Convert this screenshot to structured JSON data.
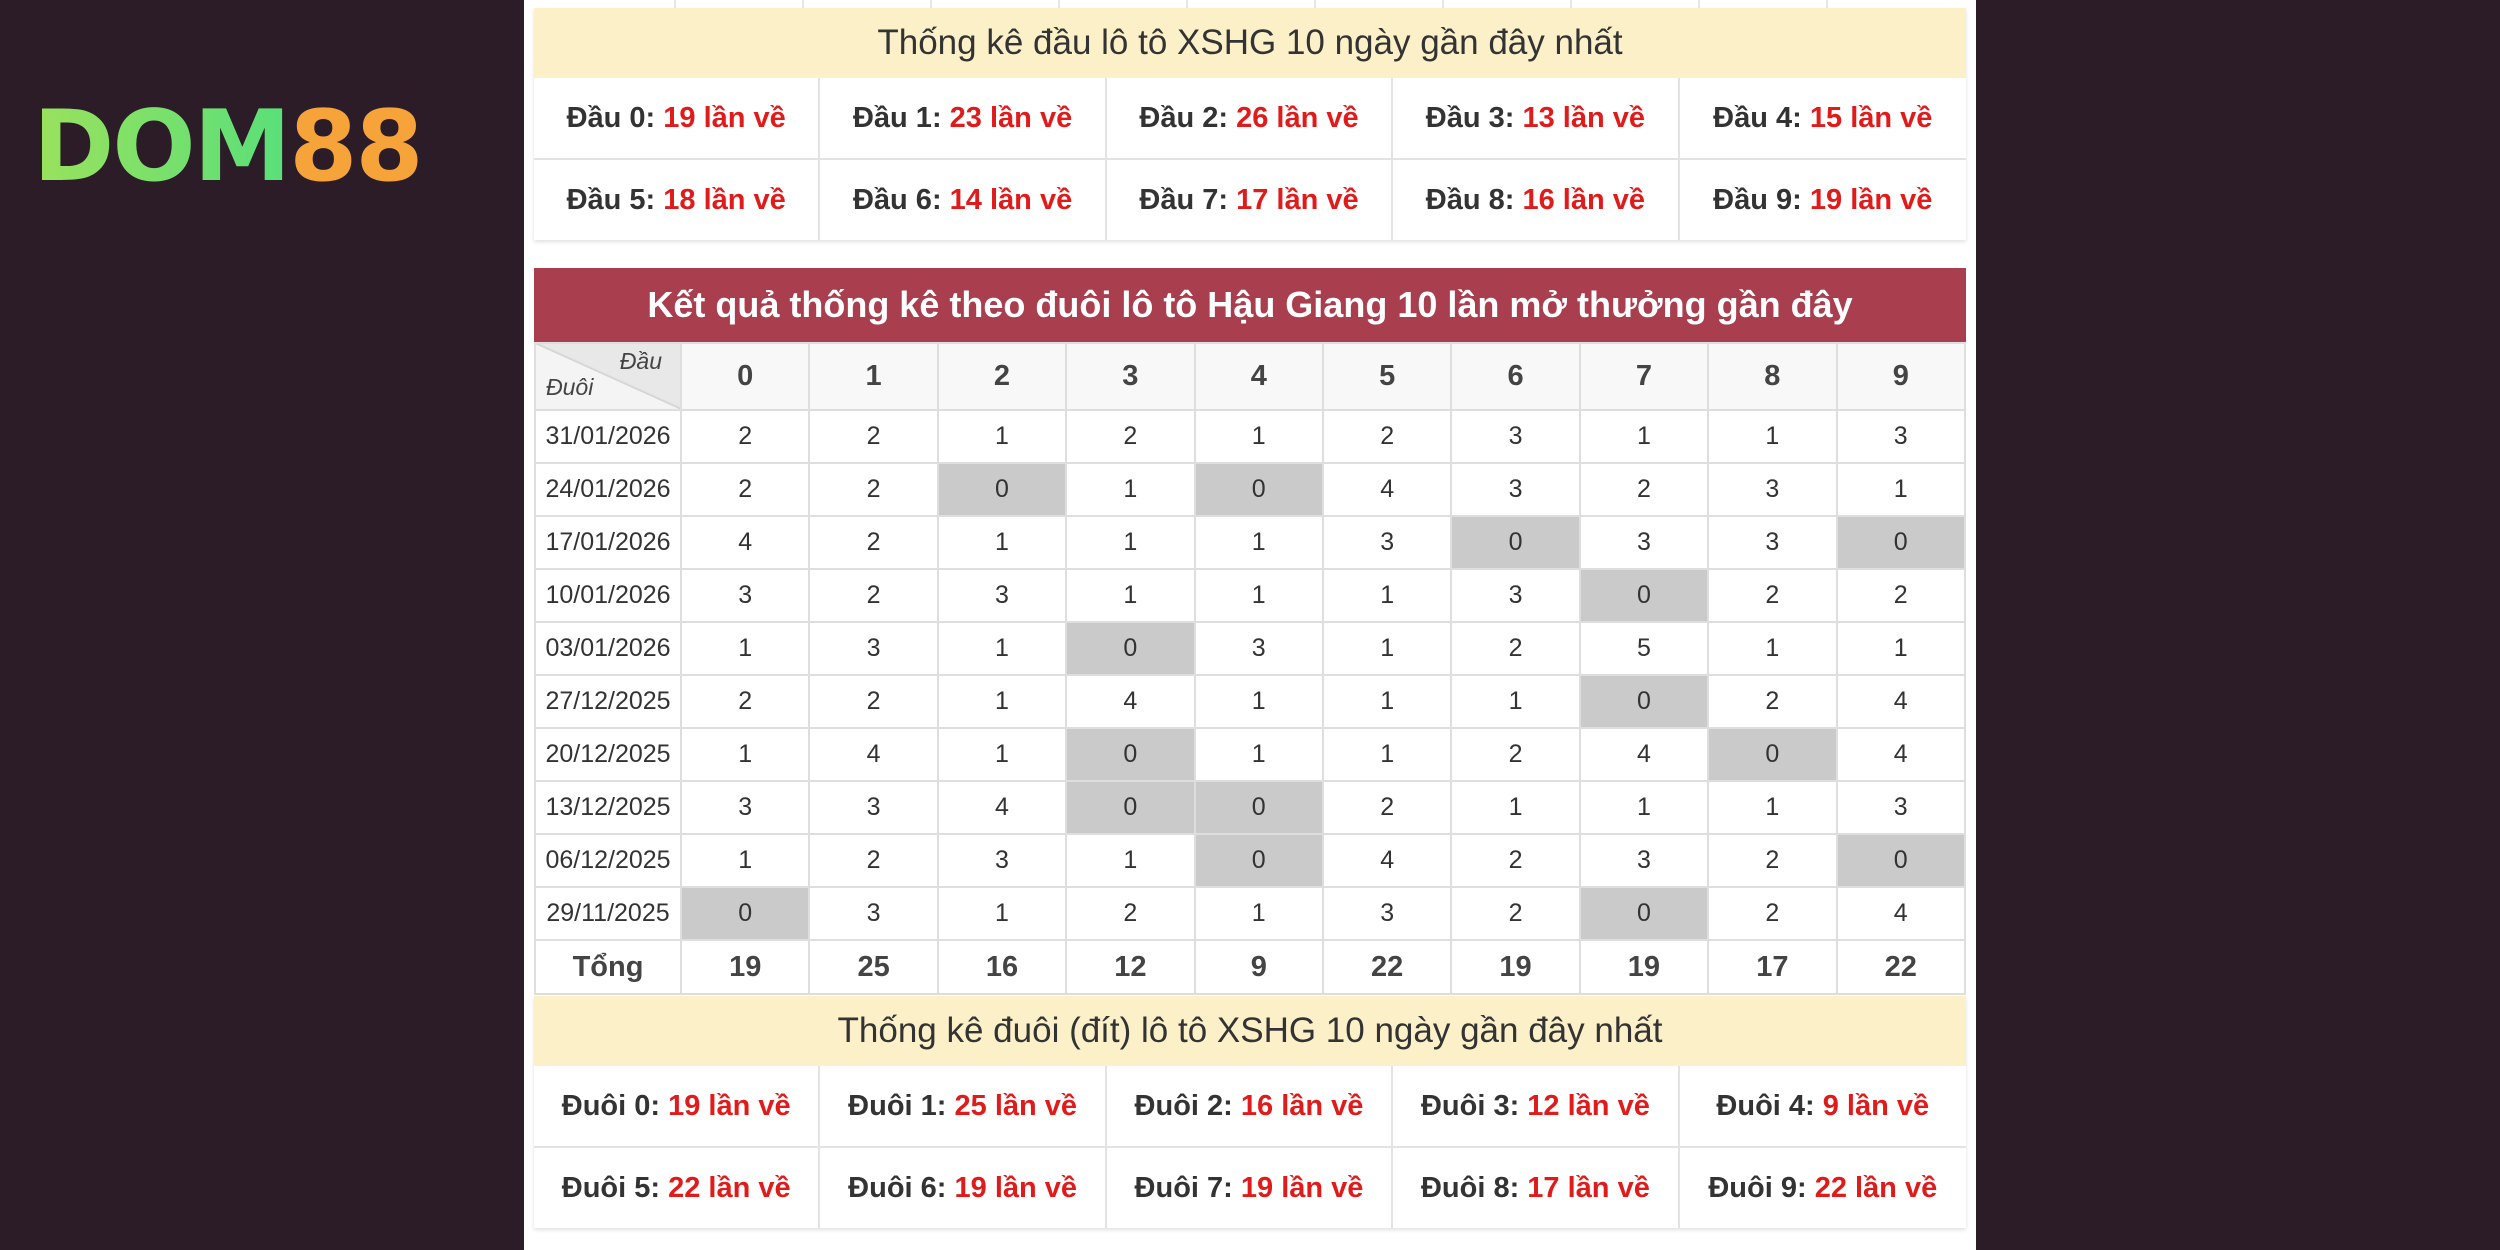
{
  "logo": {
    "part1": "DOM",
    "part2": "88"
  },
  "head_stats": {
    "title": "Thống kê đầu lô tô XSHG 10 ngày gần đây nhất",
    "items": [
      {
        "label": "Đầu 0:",
        "value": "19 lần về"
      },
      {
        "label": "Đầu 1:",
        "value": "23 lần về"
      },
      {
        "label": "Đầu 2:",
        "value": "26 lần về"
      },
      {
        "label": "Đầu 3:",
        "value": "13 lần về"
      },
      {
        "label": "Đầu 4:",
        "value": "15 lần về"
      },
      {
        "label": "Đầu 5:",
        "value": "18 lần về"
      },
      {
        "label": "Đầu 6:",
        "value": "14 lần về"
      },
      {
        "label": "Đầu 7:",
        "value": "17 lần về"
      },
      {
        "label": "Đầu 8:",
        "value": "16 lần về"
      },
      {
        "label": "Đầu 9:",
        "value": "19 lần về"
      }
    ]
  },
  "table": {
    "title": "Kết quả thống kê theo đuôi lô tô Hậu Giang 10 lần mở thưởng gần đây",
    "corner_top": "Đầu",
    "corner_bottom": "Đuôi",
    "columns": [
      "0",
      "1",
      "2",
      "3",
      "4",
      "5",
      "6",
      "7",
      "8",
      "9"
    ],
    "rows": [
      {
        "date": "31/01/2026",
        "values": [
          2,
          2,
          1,
          2,
          1,
          2,
          3,
          1,
          1,
          3
        ]
      },
      {
        "date": "24/01/2026",
        "values": [
          2,
          2,
          0,
          1,
          0,
          4,
          3,
          2,
          3,
          1
        ]
      },
      {
        "date": "17/01/2026",
        "values": [
          4,
          2,
          1,
          1,
          1,
          3,
          0,
          3,
          3,
          0
        ]
      },
      {
        "date": "10/01/2026",
        "values": [
          3,
          2,
          3,
          1,
          1,
          1,
          3,
          0,
          2,
          2
        ]
      },
      {
        "date": "03/01/2026",
        "values": [
          1,
          3,
          1,
          0,
          3,
          1,
          2,
          5,
          1,
          1
        ]
      },
      {
        "date": "27/12/2025",
        "values": [
          2,
          2,
          1,
          4,
          1,
          1,
          1,
          0,
          2,
          4
        ]
      },
      {
        "date": "20/12/2025",
        "values": [
          1,
          4,
          1,
          0,
          1,
          1,
          2,
          4,
          0,
          4
        ]
      },
      {
        "date": "13/12/2025",
        "values": [
          3,
          3,
          4,
          0,
          0,
          2,
          1,
          1,
          1,
          3
        ]
      },
      {
        "date": "06/12/2025",
        "values": [
          1,
          2,
          3,
          1,
          0,
          4,
          2,
          3,
          2,
          0
        ]
      },
      {
        "date": "29/11/2025",
        "values": [
          0,
          3,
          1,
          2,
          1,
          3,
          2,
          0,
          2,
          4
        ]
      }
    ],
    "total_label": "Tổng",
    "totals": [
      19,
      25,
      16,
      12,
      9,
      22,
      19,
      19,
      17,
      22
    ]
  },
  "tail_stats": {
    "title": "Thống kê đuôi (đít) lô tô XSHG 10 ngày gần đây nhất",
    "items": [
      {
        "label": "Đuôi 0:",
        "value": "19 lần về"
      },
      {
        "label": "Đuôi 1:",
        "value": "25 lần về"
      },
      {
        "label": "Đuôi 2:",
        "value": "16 lần về"
      },
      {
        "label": "Đuôi 3:",
        "value": "12 lần về"
      },
      {
        "label": "Đuôi 4:",
        "value": "9 lần về"
      },
      {
        "label": "Đuôi 5:",
        "value": "22 lần về"
      },
      {
        "label": "Đuôi 6:",
        "value": "19 lần về"
      },
      {
        "label": "Đuôi 7:",
        "value": "19 lần về"
      },
      {
        "label": "Đuôi 8:",
        "value": "17 lần về"
      },
      {
        "label": "Đuôi 9:",
        "value": "22 lần về"
      }
    ]
  },
  "colors": {
    "accent": "#a83e4e",
    "highlight": "#e01b1b",
    "zero_cell": "#cacaca",
    "panel_title_bg": "#fbf0c8"
  }
}
